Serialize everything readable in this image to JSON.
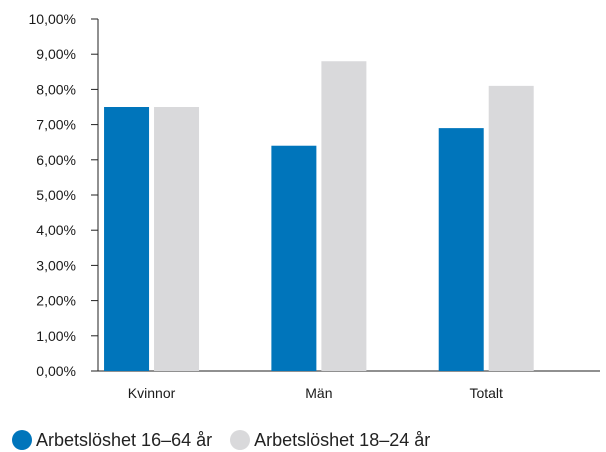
{
  "chart_data": {
    "type": "bar",
    "categories": [
      "Kvinnor",
      "Män",
      "Totalt"
    ],
    "series": [
      {
        "name": "Arbetslöshet 16–64 år",
        "values": [
          7.5,
          6.4,
          6.9
        ],
        "color": "#0075bb"
      },
      {
        "name": "Arbetslöshet 18–24 år",
        "values": [
          7.5,
          8.8,
          8.1
        ],
        "color": "#d9d9db"
      }
    ],
    "ylim": [
      0,
      10
    ],
    "yticks": [
      0,
      1,
      2,
      3,
      4,
      5,
      6,
      7,
      8,
      9,
      10
    ],
    "ytick_labels": [
      "0,00%",
      "1,00%",
      "2,00%",
      "3,00%",
      "4,00%",
      "5,00%",
      "6,00%",
      "7,00%",
      "8,00%",
      "9,00%",
      "10,00%"
    ],
    "grid": false,
    "legend_position": "bottom-left"
  }
}
